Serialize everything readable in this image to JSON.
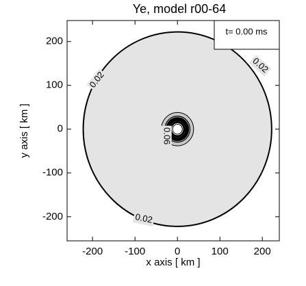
{
  "chart_data": {
    "type": "contour",
    "title": "Ye, model r00-64",
    "xlabel": "x axis [ km ]",
    "ylabel": "y axis [ km ]",
    "annotation": "t=  0.00 ms",
    "xlim": [
      -260,
      240
    ],
    "ylim": [
      -255,
      248
    ],
    "xticks": [
      -200,
      -100,
      0,
      100,
      200
    ],
    "yticks": [
      -200,
      -100,
      0,
      100,
      200
    ],
    "contours": [
      {
        "level": 0.02,
        "radius": 222,
        "color": "#000000"
      },
      {
        "level": 0.06,
        "radius": 38,
        "color": "#000000"
      }
    ]
  }
}
